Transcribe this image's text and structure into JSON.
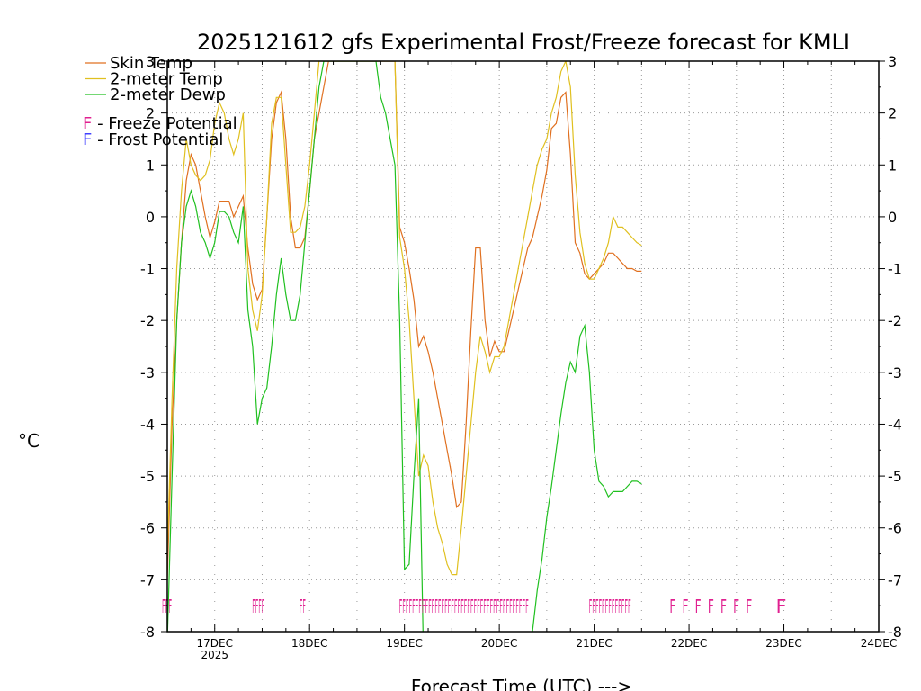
{
  "chart_data": {
    "type": "line",
    "title": "2025121612 gfs Experimental Frost/Freeze forecast for KMLI",
    "xlabel": "Forecast Time (UTC) --->",
    "ylabel": "°C",
    "ylim": [
      -8,
      3
    ],
    "yticks": [
      -8,
      -7,
      -6,
      -5,
      -4,
      -3,
      -2,
      -1,
      0,
      1,
      2,
      3
    ],
    "xlim": [
      -0.5,
      7.0
    ],
    "x_unit": "days since 17DEC 00Z",
    "x_ticks": [
      {
        "x": 0,
        "label": "17DEC",
        "sub": "2025"
      },
      {
        "x": 1,
        "label": "18DEC",
        "sub": ""
      },
      {
        "x": 2,
        "label": "19DEC",
        "sub": ""
      },
      {
        "x": 3,
        "label": "20DEC",
        "sub": ""
      },
      {
        "x": 4,
        "label": "21DEC",
        "sub": ""
      },
      {
        "x": 5,
        "label": "22DEC",
        "sub": ""
      },
      {
        "x": 6,
        "label": "23DEC",
        "sub": ""
      },
      {
        "x": 7,
        "label": "24DEC",
        "sub": ""
      }
    ],
    "grid": true,
    "legend": {
      "position": "top-left",
      "entries": [
        {
          "label": "Skin Temp",
          "color": "#e07020"
        },
        {
          "label": "2-meter Temp",
          "color": "#e0c020"
        },
        {
          "label": "2-meter Dewp",
          "color": "#20c020"
        }
      ],
      "potential": [
        {
          "symbol": "F",
          "label": " - Freeze Potential",
          "color": "#e02090"
        },
        {
          "symbol": "F",
          "label": " - Frost Potential",
          "color": "#4040ff"
        }
      ]
    },
    "series": [
      {
        "name": "Skin Temp",
        "color": "#e07020",
        "x": [
          -0.5,
          -0.45,
          -0.4,
          -0.35,
          -0.3,
          -0.25,
          -0.2,
          -0.15,
          -0.1,
          -0.05,
          0,
          0.05,
          0.1,
          0.15,
          0.2,
          0.25,
          0.3,
          0.35,
          0.4,
          0.45,
          0.5,
          0.55,
          0.6,
          0.65,
          0.7,
          0.75,
          0.8,
          0.85,
          0.9,
          0.95,
          1.0,
          1.05,
          1.1,
          1.15,
          1.2,
          1.25,
          1.3,
          1.35,
          1.4,
          1.5,
          1.6,
          1.7,
          1.75,
          1.8,
          1.85,
          1.9,
          1.95,
          2.0,
          2.05,
          2.1,
          2.15,
          2.2,
          2.25,
          2.3,
          2.35,
          2.4,
          2.45,
          2.5,
          2.55,
          2.6,
          2.65,
          2.7,
          2.75,
          2.8,
          2.85,
          2.9,
          2.95,
          3.0,
          3.05,
          3.1,
          3.15,
          3.2,
          3.25,
          3.3,
          3.35,
          3.4,
          3.45,
          3.5,
          3.55,
          3.6,
          3.65,
          3.7,
          3.75,
          3.8,
          3.85,
          3.9,
          3.95,
          4.0,
          4.05,
          4.1,
          4.15,
          4.2,
          4.25,
          4.3,
          4.35,
          4.4,
          4.45,
          4.5
        ],
        "values": [
          -7.0,
          -4.0,
          -2.0,
          -0.5,
          0.7,
          1.2,
          1.0,
          0.5,
          0.0,
          -0.4,
          -0.1,
          0.3,
          0.3,
          0.3,
          0.0,
          0.2,
          0.4,
          -0.6,
          -1.3,
          -1.6,
          -1.4,
          0.0,
          1.5,
          2.2,
          2.4,
          1.5,
          0.0,
          -0.6,
          -0.6,
          -0.4,
          0.5,
          1.5,
          2.0,
          2.5,
          3.0,
          3.0,
          3.0,
          3.0,
          3.0,
          3.0,
          3.0,
          3.0,
          3.0,
          3.0,
          3.0,
          3.0,
          -0.2,
          -0.5,
          -1.0,
          -1.6,
          -2.5,
          -2.3,
          -2.6,
          -3.0,
          -3.5,
          -4.0,
          -4.5,
          -5.0,
          -5.6,
          -5.5,
          -4.0,
          -2.2,
          -0.6,
          -0.6,
          -2.0,
          -2.7,
          -2.4,
          -2.6,
          -2.6,
          -2.2,
          -1.8,
          -1.4,
          -1.0,
          -0.6,
          -0.4,
          0.0,
          0.4,
          0.9,
          1.7,
          1.8,
          2.3,
          2.4,
          1.2,
          -0.5,
          -0.7,
          -1.1,
          -1.2,
          -1.1,
          -1.0,
          -0.9,
          -0.7,
          -0.7,
          -0.8,
          -0.9,
          -1.0,
          -1.0,
          -1.05,
          -1.05
        ]
      },
      {
        "name": "2-meter Temp",
        "color": "#e0c020",
        "x": [
          -0.5,
          -0.45,
          -0.4,
          -0.35,
          -0.3,
          -0.25,
          -0.2,
          -0.15,
          -0.1,
          -0.05,
          0,
          0.05,
          0.1,
          0.15,
          0.2,
          0.25,
          0.3,
          0.35,
          0.4,
          0.45,
          0.5,
          0.55,
          0.6,
          0.65,
          0.7,
          0.75,
          0.8,
          0.85,
          0.9,
          0.95,
          1.0,
          1.05,
          1.1,
          1.15,
          1.2,
          1.25,
          1.3,
          1.35,
          1.4,
          1.5,
          1.6,
          1.7,
          1.75,
          1.8,
          1.85,
          1.9,
          1.95,
          2.0,
          2.05,
          2.1,
          2.15,
          2.2,
          2.25,
          2.3,
          2.35,
          2.4,
          2.45,
          2.5,
          2.55,
          2.6,
          2.65,
          2.7,
          2.75,
          2.8,
          2.85,
          2.9,
          2.95,
          3.0,
          3.05,
          3.1,
          3.15,
          3.2,
          3.25,
          3.3,
          3.35,
          3.4,
          3.45,
          3.5,
          3.55,
          3.6,
          3.65,
          3.7,
          3.75,
          3.8,
          3.85,
          3.9,
          3.95,
          4.0,
          4.05,
          4.1,
          4.15,
          4.2,
          4.25,
          4.3,
          4.35,
          4.4,
          4.45,
          4.5
        ],
        "values": [
          -6.5,
          -3.5,
          -1.0,
          0.5,
          1.5,
          1.0,
          0.8,
          0.7,
          0.8,
          1.1,
          1.8,
          2.2,
          2.0,
          1.5,
          1.2,
          1.5,
          2.0,
          -1.0,
          -1.8,
          -2.2,
          -1.5,
          0.0,
          1.8,
          2.3,
          2.3,
          1.0,
          -0.3,
          -0.3,
          -0.2,
          0.2,
          1.0,
          2.0,
          3.0,
          3.0,
          3.0,
          3.0,
          3.0,
          3.0,
          3.0,
          3.0,
          3.0,
          3.0,
          3.0,
          3.0,
          3.0,
          3.0,
          -0.4,
          -1.0,
          -2.0,
          -3.5,
          -5.0,
          -4.6,
          -4.8,
          -5.5,
          -6.0,
          -6.3,
          -6.7,
          -6.9,
          -6.9,
          -6.0,
          -5.0,
          -4.0,
          -3.0,
          -2.3,
          -2.6,
          -3.0,
          -2.7,
          -2.7,
          -2.5,
          -2.0,
          -1.5,
          -1.0,
          -0.5,
          0.0,
          0.5,
          1.0,
          1.3,
          1.5,
          2.0,
          2.3,
          2.8,
          3.0,
          2.5,
          0.8,
          -0.3,
          -0.9,
          -1.2,
          -1.2,
          -1.0,
          -0.8,
          -0.5,
          0.0,
          -0.2,
          -0.2,
          -0.3,
          -0.4,
          -0.5,
          -0.55
        ]
      },
      {
        "name": "2-meter Dewp",
        "color": "#20c020",
        "x": [
          -0.5,
          -0.45,
          -0.4,
          -0.35,
          -0.3,
          -0.25,
          -0.2,
          -0.15,
          -0.1,
          -0.05,
          0,
          0.05,
          0.1,
          0.15,
          0.2,
          0.25,
          0.3,
          0.35,
          0.4,
          0.45,
          0.5,
          0.55,
          0.6,
          0.65,
          0.7,
          0.75,
          0.8,
          0.85,
          0.9,
          0.95,
          1.0,
          1.05,
          1.1,
          1.15,
          1.2,
          1.25,
          1.3,
          1.4,
          1.5,
          1.6,
          1.7,
          1.75,
          1.8,
          1.85,
          1.9,
          1.95,
          2.0,
          2.05,
          2.1,
          2.15,
          2.2
        ],
        "values": [
          -8.2,
          -5.0,
          -2.0,
          -0.5,
          0.2,
          0.5,
          0.2,
          -0.3,
          -0.5,
          -0.8,
          -0.5,
          0.1,
          0.1,
          0.0,
          -0.3,
          -0.5,
          0.2,
          -1.8,
          -2.5,
          -4.0,
          -3.5,
          -3.3,
          -2.5,
          -1.5,
          -0.8,
          -1.5,
          -2.0,
          -2.0,
          -1.5,
          -0.5,
          0.5,
          1.5,
          2.5,
          3.0,
          3.0,
          3.0,
          3.0,
          3.0,
          3.0,
          3.0,
          3.0,
          2.3,
          2.0,
          1.5,
          1.0,
          -2.0,
          -6.8,
          -6.7,
          -5.0,
          -3.5,
          -8.5
        ]
      },
      {
        "name": "2-meter Dewp (cont.)",
        "color": "#20c020",
        "x": [
          3.35,
          3.4,
          3.45,
          3.5,
          3.55,
          3.6,
          3.65,
          3.7,
          3.75,
          3.8,
          3.85,
          3.9,
          3.95,
          4.0,
          4.05,
          4.1,
          4.15,
          4.2,
          4.25,
          4.3,
          4.35,
          4.4,
          4.45,
          4.5
        ],
        "values": [
          -8.0,
          -7.2,
          -6.6,
          -5.8,
          -5.2,
          -4.5,
          -3.8,
          -3.2,
          -2.8,
          -3.0,
          -2.3,
          -2.1,
          -3.0,
          -4.5,
          -5.1,
          -5.2,
          -5.4,
          -5.3,
          -5.3,
          -5.3,
          -5.2,
          -5.1,
          -5.1,
          -5.15
        ]
      }
    ],
    "freeze_potential": {
      "y": -7.5,
      "color": "#e02090",
      "runs": [
        {
          "x": -0.5,
          "text": "FFF"
        },
        {
          "x": 0.45,
          "text": "FFFF"
        },
        {
          "x": 0.95,
          "text": "FF"
        },
        {
          "x": 2.0,
          "text": "FFFFFFFFFFFFFFFFFFFFFFFFFFFFFFFFFFFFFFFF"
        },
        {
          "x": 4.0,
          "text": "FFFFFFFFFFFFF"
        },
        {
          "x": 4.85,
          "text": "F F F F F F F"
        },
        {
          "x": 5.97,
          "text": "F"
        }
      ]
    }
  }
}
